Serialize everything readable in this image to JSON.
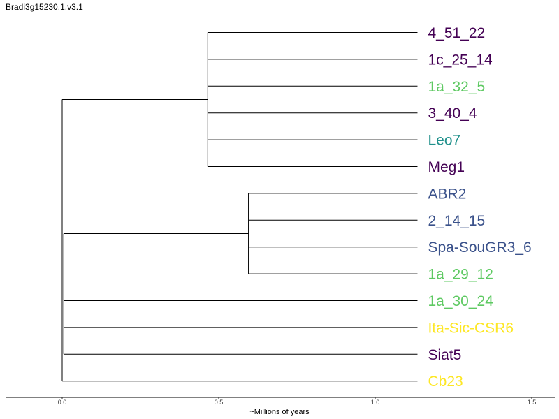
{
  "title": "Bradi3g15230.1.v3.1",
  "axis": {
    "label": "~Millions of years",
    "ticks": [
      "0.0",
      "0.5",
      "1.0",
      "1.5"
    ],
    "range": [
      0,
      1.5
    ]
  },
  "palette": {
    "purple": "#440154",
    "teal": "#21918c",
    "blue": "#3b528b",
    "green": "#5ec962",
    "yellow": "#fde725"
  },
  "leaves": [
    {
      "label": "4_51_22",
      "color": "purple"
    },
    {
      "label": "1c_25_14",
      "color": "purple"
    },
    {
      "label": "1a_32_5",
      "color": "green"
    },
    {
      "label": "3_40_4",
      "color": "purple"
    },
    {
      "label": "Leo7",
      "color": "teal"
    },
    {
      "label": "Meg1",
      "color": "purple"
    },
    {
      "label": "ABR2",
      "color": "blue"
    },
    {
      "label": "2_14_15",
      "color": "blue"
    },
    {
      "label": "Spa-SouGR3_6",
      "color": "blue"
    },
    {
      "label": "1a_29_12",
      "color": "green"
    },
    {
      "label": "1a_30_24",
      "color": "green"
    },
    {
      "label": "Ita-Sic-CSR6",
      "color": "yellow"
    },
    {
      "label": "Siat5",
      "color": "purple"
    },
    {
      "label": "Cb23",
      "color": "yellow"
    }
  ],
  "tree": {
    "root_position": 0.0,
    "inner_root_position": 0.005,
    "clades": [
      {
        "position": 0.465,
        "leaves": [
          0,
          1,
          2,
          3,
          4,
          5
        ]
      },
      {
        "position": 0.595,
        "leaves": [
          6,
          7,
          8,
          9
        ]
      }
    ],
    "leaf_position": 1.135
  }
}
